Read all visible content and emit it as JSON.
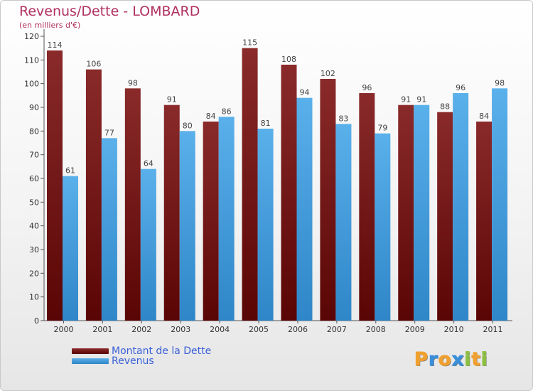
{
  "chart_data": {
    "type": "bar",
    "title": "Revenus/Dette - LOMBARD",
    "subtitle": "(en milliers d'€)",
    "categories": [
      "2000",
      "2001",
      "2002",
      "2003",
      "2004",
      "2005",
      "2006",
      "2007",
      "2008",
      "2009",
      "2010",
      "2011"
    ],
    "series": [
      {
        "name": "Montant de la Dette",
        "color": "#7a1a1a",
        "values": [
          114,
          106,
          98,
          91,
          84,
          115,
          108,
          102,
          96,
          91,
          88,
          84
        ]
      },
      {
        "name": "Revenus",
        "color": "#4da3e0",
        "values": [
          61,
          77,
          64,
          80,
          86,
          81,
          94,
          83,
          79,
          91,
          96,
          98
        ]
      }
    ],
    "ylim": [
      0,
      120
    ],
    "yticks": [
      0,
      10,
      20,
      30,
      40,
      50,
      60,
      70,
      80,
      90,
      100,
      110,
      120
    ],
    "grid": false,
    "legend_position": "bottom-left",
    "show_value_labels": true
  },
  "logo": {
    "text": "Proxiti",
    "letters": [
      {
        "ch": "P",
        "color": "#f0a030"
      },
      {
        "ch": "r",
        "color": "#3a8fd8"
      },
      {
        "ch": "o",
        "color": "#f0a030"
      },
      {
        "ch": "x",
        "color": "#3a8fd8"
      },
      {
        "ch": "i",
        "color": "#8cc040"
      },
      {
        "ch": "t",
        "color": "#f0a030"
      },
      {
        "ch": "i",
        "color": "#8cc040"
      }
    ]
  }
}
